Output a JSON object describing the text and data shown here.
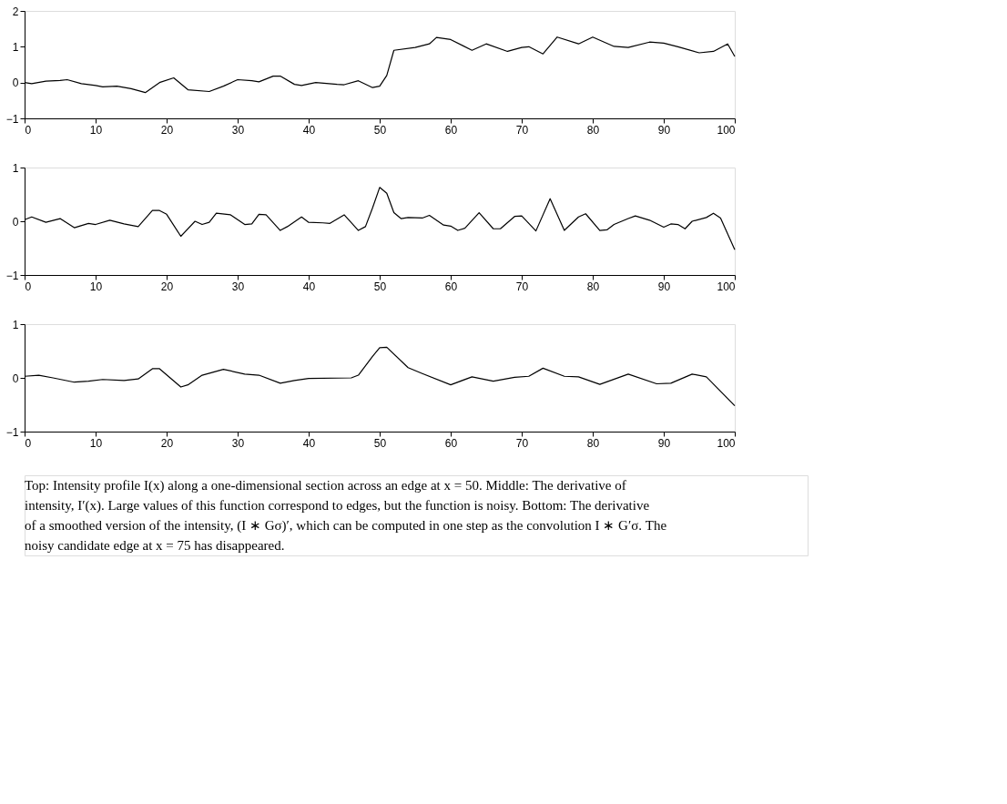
{
  "chart_data": [
    {
      "type": "line",
      "xlim": [
        0,
        100
      ],
      "xticks": [
        0,
        10,
        20,
        30,
        40,
        50,
        60,
        70,
        80,
        90,
        100
      ],
      "ylim": [
        -1,
        2
      ],
      "yticks": [
        -1,
        0,
        1,
        2
      ],
      "grid": false,
      "legend": false,
      "series": [
        {
          "color": "#000000",
          "x": [
            0,
            1,
            3,
            5,
            6,
            8,
            10,
            11,
            13,
            15,
            17,
            19,
            21,
            23,
            26,
            28,
            30,
            32,
            33,
            35,
            36,
            38,
            39,
            41,
            44,
            45,
            47,
            49,
            50,
            51,
            52,
            55,
            57,
            58,
            60,
            63,
            65,
            68,
            70,
            71,
            73,
            75,
            78,
            80,
            83,
            85,
            88,
            90,
            92,
            95,
            97,
            99,
            100
          ],
          "values": [
            0,
            -0.03,
            0.04,
            0.06,
            0.08,
            -0.03,
            -0.08,
            -0.12,
            -0.1,
            -0.17,
            -0.28,
            0,
            0.13,
            -0.2,
            -0.25,
            -0.1,
            0.08,
            0.05,
            0.02,
            0.18,
            0.18,
            -0.05,
            -0.08,
            0,
            -0.05,
            -0.06,
            0.05,
            -0.14,
            -0.1,
            0.2,
            0.9,
            0.98,
            1.08,
            1.26,
            1.2,
            0.9,
            1.08,
            0.87,
            0.98,
            1.0,
            0.8,
            1.27,
            1.08,
            1.27,
            1.01,
            0.98,
            1.13,
            1.1,
            1.0,
            0.83,
            0.87,
            1.08,
            0.73
          ]
        }
      ]
    },
    {
      "type": "line",
      "xlim": [
        0,
        100
      ],
      "xticks": [
        0,
        10,
        20,
        30,
        40,
        50,
        60,
        70,
        80,
        90,
        100
      ],
      "ylim": [
        -1,
        1
      ],
      "yticks": [
        -1,
        0,
        1
      ],
      "grid": false,
      "legend": false,
      "series": [
        {
          "color": "#000000",
          "x": [
            0,
            1,
            3,
            5,
            7,
            9,
            10,
            12,
            14,
            16,
            18,
            19,
            20,
            22,
            24,
            25,
            26,
            27,
            29,
            31,
            32,
            33,
            34,
            36,
            37,
            39,
            40,
            42,
            43,
            45,
            47,
            48,
            49,
            50,
            51,
            52,
            53,
            54,
            56,
            57,
            59,
            60,
            61,
            62,
            64,
            66,
            67,
            69,
            70,
            72,
            74,
            76,
            78,
            79,
            81,
            82,
            83,
            85,
            86,
            88,
            90,
            91,
            92,
            93,
            94,
            96,
            97,
            98,
            100
          ],
          "values": [
            0.03,
            0.08,
            -0.02,
            0.05,
            -0.12,
            -0.04,
            -0.06,
            0.02,
            -0.05,
            -0.1,
            0.2,
            0.2,
            0.13,
            -0.28,
            0,
            -0.06,
            -0.02,
            0.15,
            0.12,
            -0.06,
            -0.05,
            0.13,
            0.12,
            -0.17,
            -0.1,
            0.08,
            -0.02,
            -0.03,
            -0.04,
            0.12,
            -0.17,
            -0.1,
            0.25,
            0.63,
            0.52,
            0.16,
            0.05,
            0.07,
            0.06,
            0.11,
            -0.07,
            -0.09,
            -0.17,
            -0.13,
            0.16,
            -0.14,
            -0.14,
            0.09,
            0.1,
            -0.18,
            0.42,
            -0.17,
            0.08,
            0.14,
            -0.17,
            -0.16,
            -0.06,
            0.05,
            0.1,
            0.02,
            -0.11,
            -0.05,
            -0.06,
            -0.14,
            0,
            0.07,
            0.15,
            0.06,
            -0.53
          ]
        }
      ]
    },
    {
      "type": "line",
      "xlim": [
        0,
        100
      ],
      "xticks": [
        0,
        10,
        20,
        30,
        40,
        50,
        60,
        70,
        80,
        90,
        100
      ],
      "ylim": [
        -1,
        1
      ],
      "yticks": [
        -1,
        0,
        1
      ],
      "grid": false,
      "legend": false,
      "series": [
        {
          "color": "#000000",
          "x": [
            0,
            2,
            4,
            7,
            9,
            11,
            14,
            16,
            18,
            19,
            22,
            23,
            25,
            28,
            31,
            33,
            36,
            38,
            40,
            46,
            47,
            49,
            50,
            51,
            54,
            56,
            60,
            63,
            66,
            69,
            71,
            73,
            76,
            78,
            81,
            85,
            89,
            91,
            94,
            96,
            100
          ],
          "values": [
            0.03,
            0.05,
            0,
            -0.08,
            -0.06,
            -0.03,
            -0.05,
            -0.02,
            0.17,
            0.17,
            -0.17,
            -0.13,
            0.05,
            0.16,
            0.07,
            0.05,
            -0.1,
            -0.05,
            -0.01,
            0,
            0.05,
            0.4,
            0.56,
            0.57,
            0.19,
            0.08,
            -0.13,
            0.02,
            -0.06,
            0.01,
            0.03,
            0.18,
            0.03,
            0.02,
            -0.12,
            0.07,
            -0.11,
            -0.1,
            0.07,
            0.02,
            -0.52
          ]
        }
      ],
      "annotations": [
        "Top: Intensity profile I(x) along a one-dimensional section across an edge at x = 50. Middle: The derivative of intensity, I′(x). Large values of this function correspond to edges, but the function is noisy. Bottom: The derivative of a smoothed version of the intensity, (I ∗ Gσ)′, which can be computed in one step as the convolution I ∗ G′σ. The noisy candidate edge at x = 75 has disappeared."
      ]
    }
  ]
}
